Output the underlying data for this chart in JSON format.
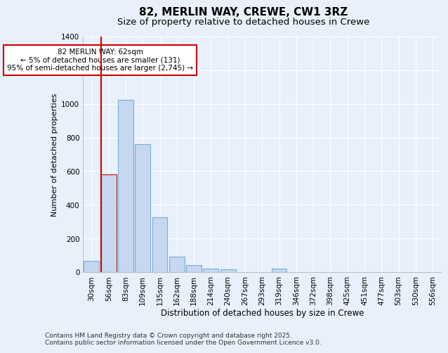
{
  "title1": "82, MERLIN WAY, CREWE, CW1 3RZ",
  "title2": "Size of property relative to detached houses in Crewe",
  "xlabel": "Distribution of detached houses by size in Crewe",
  "ylabel": "Number of detached properties",
  "categories": [
    "30sqm",
    "56sqm",
    "83sqm",
    "109sqm",
    "135sqm",
    "162sqm",
    "188sqm",
    "214sqm",
    "240sqm",
    "267sqm",
    "293sqm",
    "319sqm",
    "346sqm",
    "372sqm",
    "398sqm",
    "425sqm",
    "451sqm",
    "477sqm",
    "503sqm",
    "530sqm",
    "556sqm"
  ],
  "values": [
    65,
    580,
    1025,
    760,
    325,
    90,
    40,
    22,
    15,
    0,
    0,
    20,
    0,
    0,
    0,
    0,
    0,
    0,
    0,
    0,
    0
  ],
  "bar_color": "#c5d8f0",
  "bar_edge_color": "#7aadd4",
  "highlight_bar_index": 1,
  "highlight_bar_edge_color": "#cc0000",
  "vline_color": "#cc0000",
  "annotation_text": "82 MERLIN WAY: 62sqm\n← 5% of detached houses are smaller (131)\n95% of semi-detached houses are larger (2,745) →",
  "annotation_box_color": "#ffffff",
  "annotation_box_edge": "#cc0000",
  "ylim": [
    0,
    1400
  ],
  "yticks": [
    0,
    200,
    400,
    600,
    800,
    1000,
    1200,
    1400
  ],
  "bg_color": "#e8f0fb",
  "grid_color": "#ffffff",
  "footer": "Contains HM Land Registry data © Crown copyright and database right 2025.\nContains public sector information licensed under the Open Government Licence v3.0.",
  "title1_fontsize": 11,
  "title2_fontsize": 9.5,
  "xlabel_fontsize": 8.5,
  "ylabel_fontsize": 8,
  "tick_fontsize": 7.5,
  "annotation_fontsize": 7.5,
  "footer_fontsize": 6.5
}
